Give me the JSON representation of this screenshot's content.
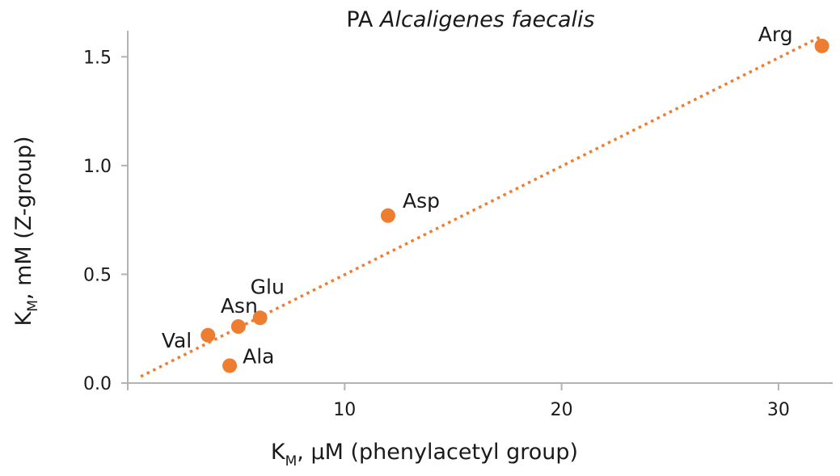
{
  "chart_data": {
    "type": "scatter",
    "title_prefix": "PA",
    "title_species": "Alcaligenes faecalis",
    "xlabel": {
      "main": "K",
      "sub": "M",
      "rest": ", μM (phenylacetyl group)"
    },
    "ylabel": {
      "main": "K",
      "sub": "M",
      "rest": ", mM (Z-group)"
    },
    "xlim": [
      0,
      32.5
    ],
    "ylim": [
      0,
      1.62
    ],
    "x_ticks": [
      10,
      20,
      30
    ],
    "x_tick_labels": [
      "10",
      "20",
      "30"
    ],
    "y_ticks": [
      0.0,
      0.5,
      1.0,
      1.5
    ],
    "y_tick_labels": [
      "0.0",
      "0.5",
      "1.0",
      "1.5"
    ],
    "grid": false,
    "legend": "none",
    "points": [
      {
        "label": "Val",
        "x": 3.7,
        "y": 0.22
      },
      {
        "label": "Ala",
        "x": 4.7,
        "y": 0.08
      },
      {
        "label": "Asn",
        "x": 5.1,
        "y": 0.26
      },
      {
        "label": "Glu",
        "x": 6.1,
        "y": 0.3
      },
      {
        "label": "Asp",
        "x": 12.0,
        "y": 0.77
      },
      {
        "label": "Arg",
        "x": 32.0,
        "y": 1.55
      }
    ],
    "trendline": {
      "style": "dotted",
      "x": [
        0.6,
        31.9
      ],
      "y": [
        0.03,
        1.59
      ]
    },
    "colors": {
      "marker": "#ED7D31",
      "trendline": "#ED7D31",
      "axis": "#b3b3b3",
      "text": "#1a1a1a"
    }
  }
}
